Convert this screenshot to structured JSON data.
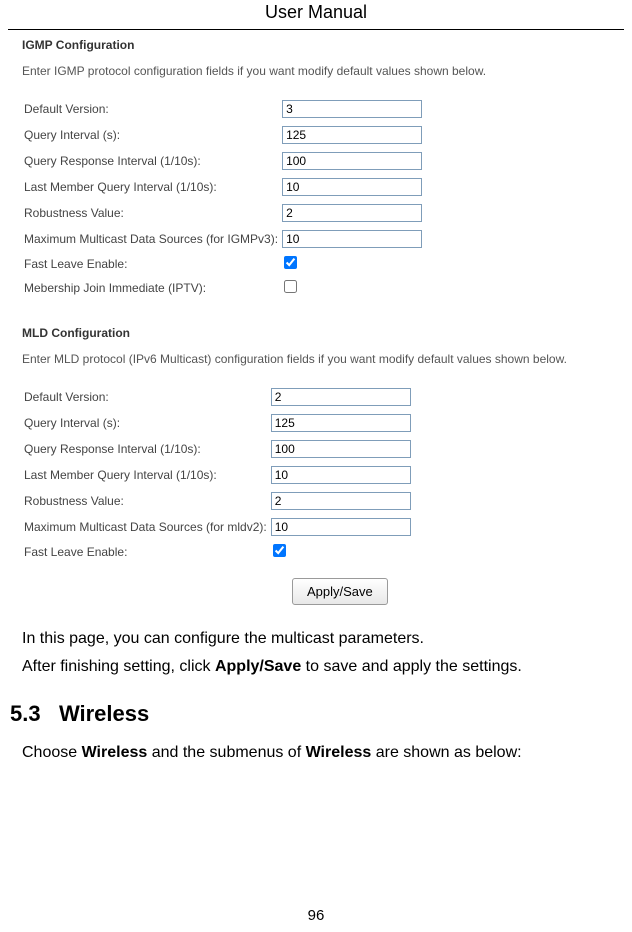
{
  "header": {
    "title": "User Manual"
  },
  "igmp": {
    "title": "IGMP Configuration",
    "desc": "Enter IGMP protocol configuration fields if you want modify default values shown below.",
    "fields": {
      "default_version": {
        "label": "Default Version:",
        "value": "3"
      },
      "query_interval": {
        "label": "Query Interval (s):",
        "value": "125"
      },
      "query_response_interval": {
        "label": "Query Response Interval (1/10s):",
        "value": "100"
      },
      "last_member_query_interval": {
        "label": "Last Member Query Interval (1/10s):",
        "value": "10"
      },
      "robustness_value": {
        "label": "Robustness Value:",
        "value": "2"
      },
      "max_multicast_sources": {
        "label": "Maximum Multicast Data Sources (for IGMPv3):",
        "value": "10"
      },
      "fast_leave_enable": {
        "label": "Fast Leave Enable:",
        "checked": true
      },
      "membership_join_immediate": {
        "label": "Mebership Join Immediate (IPTV):",
        "checked": false
      }
    }
  },
  "mld": {
    "title": "MLD Configuration",
    "desc": "Enter MLD protocol (IPv6 Multicast) configuration fields if you want modify default values shown below.",
    "fields": {
      "default_version": {
        "label": "Default Version:",
        "value": "2"
      },
      "query_interval": {
        "label": "Query Interval (s):",
        "value": "125"
      },
      "query_response_interval": {
        "label": "Query Response Interval (1/10s):",
        "value": "100"
      },
      "last_member_query_interval": {
        "label": "Last Member Query Interval (1/10s):",
        "value": "10"
      },
      "robustness_value": {
        "label": "Robustness Value:",
        "value": "2"
      },
      "max_multicast_sources": {
        "label": "Maximum Multicast Data Sources (for mldv2):",
        "value": "10"
      },
      "fast_leave_enable": {
        "label": "Fast Leave Enable:",
        "checked": true
      }
    }
  },
  "apply_button": {
    "label": "Apply/Save"
  },
  "body": {
    "line1": "In this page, you can configure the multicast parameters.",
    "line2_pre": "After finishing setting, click ",
    "line2_bold": "Apply/Save",
    "line2_post": " to save and apply the settings."
  },
  "chapter": {
    "number": "5.3",
    "title": "Wireless"
  },
  "subbody": {
    "pre": "Choose ",
    "bold1": "Wireless",
    "mid": " and the submenus of ",
    "bold2": "Wireless",
    "post": " are shown as below:"
  },
  "page_number": "96"
}
